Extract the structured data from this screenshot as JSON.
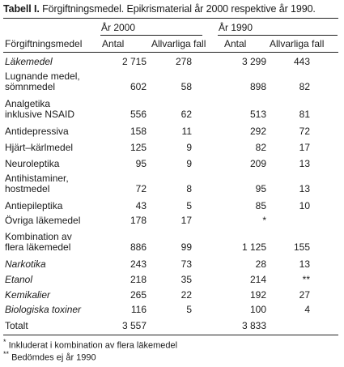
{
  "table": {
    "title_bold": "Tabell I.",
    "title_rest": " Förgiftningsmedel. Epikrismaterial år 2000 respektive år 1990.",
    "group_headers": [
      "År 2000",
      "År 1990"
    ],
    "col_headers": [
      "Förgiftningsmedel",
      "Antal",
      "Allvarliga fall",
      "Antal",
      "Allvarliga fall"
    ],
    "rows": [
      {
        "label": [
          "Läkemedel"
        ],
        "italic": true,
        "values": [
          "2 715",
          "278",
          "3 299",
          "443"
        ]
      },
      {
        "label": [
          "Lugnande medel,",
          "sömnmedel"
        ],
        "italic": false,
        "values": [
          "602",
          "58",
          "898",
          "82"
        ]
      },
      {
        "label": [
          "Analgetika",
          "inklusive NSAID"
        ],
        "italic": false,
        "values": [
          "556",
          "62",
          "513",
          "81"
        ]
      },
      {
        "label": [
          "Antidepressiva"
        ],
        "italic": false,
        "values": [
          "158",
          "11",
          "292",
          "72"
        ]
      },
      {
        "label": [
          "Hjärt–kärlmedel"
        ],
        "italic": false,
        "values": [
          "125",
          "9",
          "82",
          "17"
        ]
      },
      {
        "label": [
          "Neuroleptika"
        ],
        "italic": false,
        "values": [
          "95",
          "9",
          "209",
          "13"
        ]
      },
      {
        "label": [
          "Antihistaminer,",
          "hostmedel"
        ],
        "italic": false,
        "values": [
          "72",
          "8",
          "95",
          "13"
        ]
      },
      {
        "label": [
          "Antiepileptika"
        ],
        "italic": false,
        "values": [
          "43",
          "5",
          "85",
          "10"
        ]
      },
      {
        "label": [
          "Övriga läkemedel"
        ],
        "italic": false,
        "values": [
          "178",
          "17",
          "*",
          ""
        ]
      },
      {
        "label": [
          "Kombination av",
          "flera läkemedel"
        ],
        "italic": false,
        "values": [
          "886",
          "99",
          "1 125",
          "155"
        ]
      },
      {
        "label": [
          "Narkotika"
        ],
        "italic": true,
        "values": [
          "243",
          "73",
          "28",
          "13"
        ]
      },
      {
        "label": [
          "Etanol"
        ],
        "italic": true,
        "values": [
          "218",
          "35",
          "214",
          "**"
        ]
      },
      {
        "label": [
          "Kemikalier"
        ],
        "italic": true,
        "values": [
          "265",
          "22",
          "192",
          "27"
        ]
      },
      {
        "label": [
          "Biologiska toxiner"
        ],
        "italic": true,
        "values": [
          "116",
          "5",
          "100",
          "4"
        ]
      },
      {
        "label": [
          "Totalt"
        ],
        "italic": false,
        "values": [
          "3 557",
          "",
          "3 833",
          ""
        ]
      }
    ],
    "footnotes": [
      {
        "mark": "*",
        "text": " Inkluderat i kombination av flera läkemedel"
      },
      {
        "mark": "**",
        "text": " Bedömdes ej år 1990"
      }
    ]
  }
}
